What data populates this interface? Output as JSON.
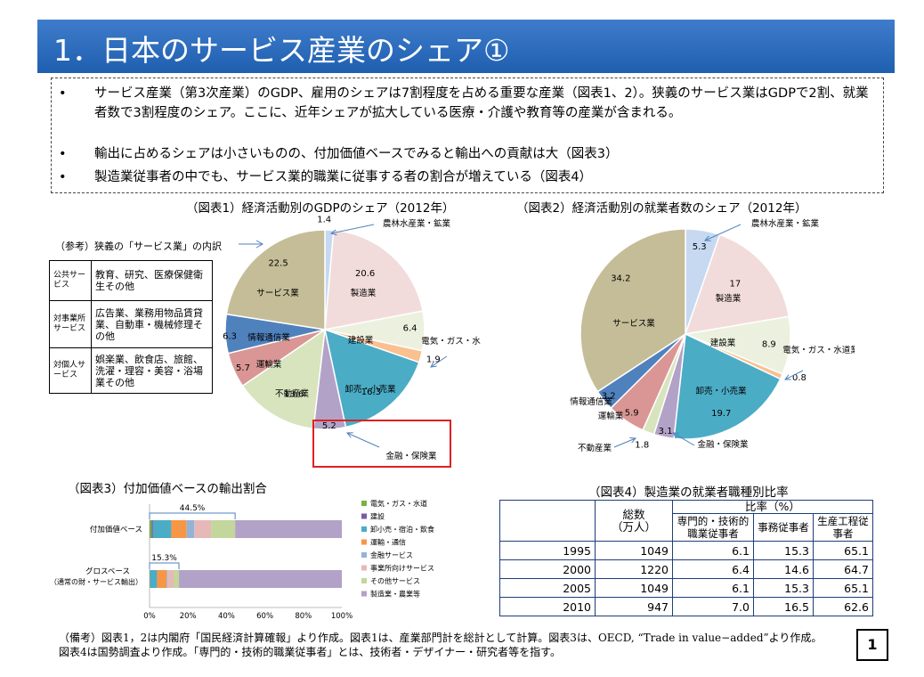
{
  "title": "1．日本のサービス産業のシェア①",
  "bullets": [
    "サービス産業（第3次産業）のGDP、雇用のシェアは7割程度を占める重要な産業（図表1、2）。狭義のサービス業はGDPで2割、就業者数で3割程度のシェア。ここに、近年シェアが拡大している医療・介護や教育等の産業が含まれる。",
    "輸出に占めるシェアは小さいものの、付加価値ベースでみると輸出への貢献は大（図表3）",
    "製造業従事者の中でも、サービス業的職業に従事する者の割合が増えている（図表4）"
  ],
  "reference": {
    "title": "（参考）狭義の「サービス業」の内訳",
    "rows": [
      {
        "category": "公共サービス",
        "content": "教育、研究、医療保健衛生その他"
      },
      {
        "category": "対事業所サービス",
        "content": "広告業、業務用物品賃貸業、自動車・機械修理その他"
      },
      {
        "category": "対個人サービス",
        "content": "娯楽業、飲食店、旅館、洗濯・理容・美容・浴場業その他"
      }
    ]
  },
  "chart_data": [
    {
      "type": "pie",
      "title": "（図表1）経済活動別のGDPのシェア（2012年）",
      "labels": [
        "農林水産業・鉱業",
        "製造業",
        "建設業",
        "電気・ガス・水道業",
        "卸売・小売業",
        "金融・保険業",
        "不動産業",
        "運輸業",
        "情報通信業",
        "サービス業"
      ],
      "values": [
        1.4,
        20.6,
        6.4,
        1.9,
        16.3,
        5.2,
        13.6,
        5.7,
        6.3,
        22.5
      ],
      "colors": [
        "#c6d9f1",
        "#f2dcdb",
        "#ebf1de",
        "#fac090",
        "#4bacc6",
        "#b3a2c7",
        "#d7e4bd",
        "#d99694",
        "#4f81bd",
        "#c4bd97"
      ],
      "highlight": "金融・保険業"
    },
    {
      "type": "pie",
      "title": "（図表2）経済活動別の就業者数のシェア（2012年）",
      "labels": [
        "農林水産業・鉱業",
        "製造業",
        "建設業",
        "電気・ガス・水道業",
        "卸売・小売業",
        "金融・保険業",
        "不動産業",
        "運輸業",
        "情報通信業",
        "サービス業"
      ],
      "values": [
        5.3,
        17.0,
        8.9,
        0.8,
        19.7,
        3.1,
        1.8,
        5.9,
        3.2,
        34.2
      ],
      "colors": [
        "#c6d9f1",
        "#f2dcdb",
        "#ebf1de",
        "#fac090",
        "#4bacc6",
        "#b3a2c7",
        "#d7e4bd",
        "#d99694",
        "#4f81bd",
        "#c4bd97"
      ]
    },
    {
      "type": "bar",
      "stacked": true,
      "orientation": "horizontal",
      "title": "（図表3）付加価値ベースの輸出割合",
      "categories": [
        "付加価値ベース",
        "グロスベース（通常の財・サービス輸出）"
      ],
      "series": [
        {
          "name": "電気・ガス・水道",
          "color": "#77b244",
          "values": [
            1.0,
            0.2
          ]
        },
        {
          "name": "建設",
          "color": "#7a5ca0",
          "values": [
            0.8,
            0.1
          ]
        },
        {
          "name": "卸小売・宿泊・飲食",
          "color": "#4bacc6",
          "values": [
            9.5,
            3.6
          ]
        },
        {
          "name": "運輸・通信",
          "color": "#f79646",
          "values": [
            8.0,
            5.0
          ]
        },
        {
          "name": "金融サービス",
          "color": "#95b3d7",
          "values": [
            4.0,
            0.5
          ]
        },
        {
          "name": "事業所向けサービス",
          "color": "#e6b9b8",
          "values": [
            8.7,
            3.1
          ]
        },
        {
          "name": "その他サービス",
          "color": "#c3d69b",
          "values": [
            12.5,
            2.8
          ]
        },
        {
          "name": "製造業・農業等",
          "color": "#b3a2c7",
          "values": [
            55.5,
            84.7
          ]
        }
      ],
      "annotations": [
        "44.5%",
        "15.3%"
      ],
      "xticks": [
        "0%",
        "20%",
        "40%",
        "60%",
        "80%",
        "100%"
      ],
      "xlim": [
        0,
        100
      ]
    },
    {
      "type": "table",
      "title": "（図表4）製造業の就業者職種別比率",
      "header": {
        "total": "総数",
        "total_unit": "（万人）",
        "ratio": "比率（%）",
        "col1": "専門的・技術的職業従事者",
        "col2": "事務従事者",
        "col3": "生産工程従事者"
      },
      "rows": [
        {
          "year": "1995",
          "total": "1049",
          "c1": "6.1",
          "c2": "15.3",
          "c3": "65.1"
        },
        {
          "year": "2000",
          "total": "1220",
          "c1": "6.4",
          "c2": "14.6",
          "c3": "64.7"
        },
        {
          "year": "2005",
          "total": "1049",
          "c1": "6.1",
          "c2": "15.3",
          "c3": "65.1"
        },
        {
          "year": "2010",
          "total": "947",
          "c1": "7.0",
          "c2": "16.5",
          "c3": "62.6"
        }
      ]
    }
  ],
  "notes": [
    "（備考）図表1，2は内閣府「国民経済計算確報」より作成。図表1は、産業部門計を総計として計算。図表3は、OECD, “Trade in value−added”より作成。",
    "図表4は国勢調査より作成。「専門的・技術的職業従事者」とは、技術者・デザイナー・研究者等を指す。"
  ],
  "page_number": "1"
}
